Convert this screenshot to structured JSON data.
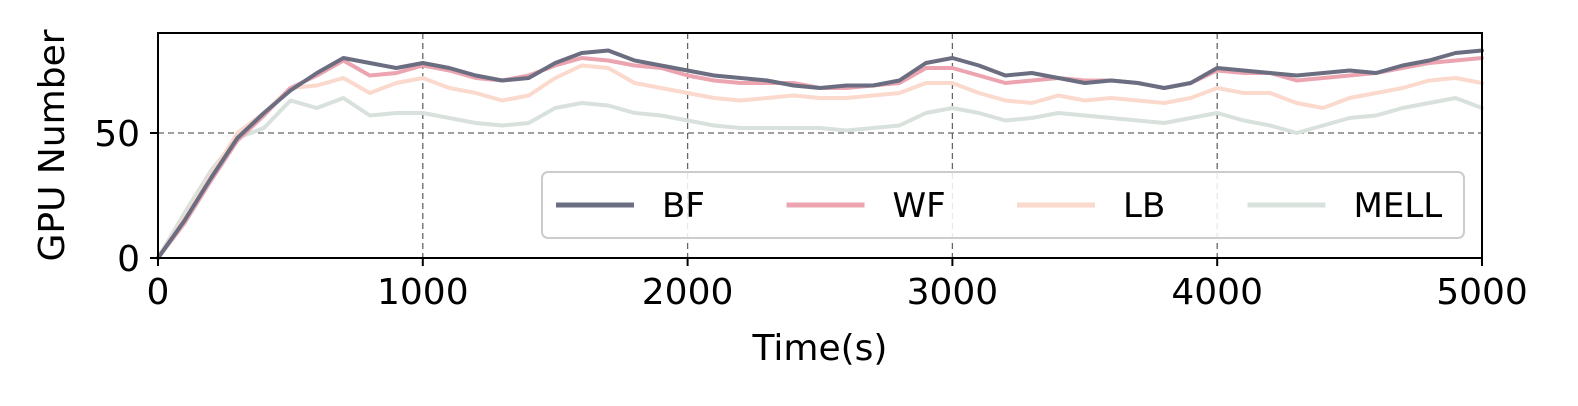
{
  "chart_data": {
    "type": "line",
    "xlabel": "Time(s)",
    "ylabel": "GPU Number",
    "xlim": [
      0,
      5000
    ],
    "ylim": [
      0,
      90
    ],
    "xticks": [
      0,
      1000,
      2000,
      3000,
      4000,
      5000
    ],
    "yticks": [
      0,
      50
    ],
    "grid": "on (dashed)",
    "legend": "lower-right, one row",
    "series": [
      {
        "name": "BF",
        "color": "#6b6d80",
        "x": [
          0,
          100,
          200,
          300,
          400,
          500,
          600,
          700,
          800,
          900,
          1000,
          1100,
          1200,
          1300,
          1400,
          1500,
          1600,
          1700,
          1800,
          1900,
          2000,
          2100,
          2200,
          2300,
          2400,
          2500,
          2600,
          2700,
          2800,
          2900,
          3000,
          3100,
          3200,
          3300,
          3400,
          3500,
          3600,
          3700,
          3800,
          3900,
          4000,
          4100,
          4200,
          4300,
          4400,
          4500,
          4600,
          4700,
          4800,
          4900,
          5000
        ],
        "y": [
          0,
          15,
          32,
          48,
          58,
          67,
          74,
          80,
          78,
          76,
          78,
          76,
          73,
          71,
          72,
          78,
          82,
          83,
          79,
          77,
          75,
          73,
          72,
          71,
          69,
          68,
          69,
          69,
          71,
          78,
          80,
          77,
          73,
          74,
          72,
          70,
          71,
          70,
          68,
          70,
          76,
          75,
          74,
          73,
          74,
          75,
          74,
          77,
          79,
          82,
          83
        ]
      },
      {
        "name": "WF",
        "color": "#eba4b0",
        "x": [
          0,
          100,
          200,
          300,
          400,
          500,
          600,
          700,
          800,
          900,
          1000,
          1100,
          1200,
          1300,
          1400,
          1500,
          1600,
          1700,
          1800,
          1900,
          2000,
          2100,
          2200,
          2300,
          2400,
          2500,
          2600,
          2700,
          2800,
          2900,
          3000,
          3100,
          3200,
          3300,
          3400,
          3500,
          3600,
          3700,
          3800,
          3900,
          4000,
          4100,
          4200,
          4300,
          4400,
          4500,
          4600,
          4700,
          4800,
          4900,
          5000
        ],
        "y": [
          0,
          14,
          31,
          47,
          57,
          68,
          73,
          79,
          73,
          74,
          77,
          75,
          72,
          71,
          73,
          77,
          80,
          79,
          77,
          76,
          73,
          71,
          70,
          70,
          70,
          68,
          68,
          69,
          70,
          76,
          76,
          73,
          70,
          71,
          72,
          71,
          71,
          70,
          68,
          70,
          75,
          74,
          74,
          71,
          72,
          73,
          74,
          76,
          78,
          79,
          80
        ]
      },
      {
        "name": "LB",
        "color": "#fbd9cd",
        "x": [
          0,
          100,
          200,
          300,
          400,
          500,
          600,
          700,
          800,
          900,
          1000,
          1100,
          1200,
          1300,
          1400,
          1500,
          1600,
          1700,
          1800,
          1900,
          2000,
          2100,
          2200,
          2300,
          2400,
          2500,
          2600,
          2700,
          2800,
          2900,
          3000,
          3100,
          3200,
          3300,
          3400,
          3500,
          3600,
          3700,
          3800,
          3900,
          4000,
          4100,
          4200,
          4300,
          4400,
          4500,
          4600,
          4700,
          4800,
          4900,
          5000
        ],
        "y": [
          0,
          16,
          33,
          50,
          58,
          68,
          69,
          72,
          66,
          70,
          72,
          68,
          66,
          63,
          65,
          72,
          77,
          76,
          70,
          68,
          66,
          64,
          63,
          64,
          65,
          64,
          64,
          65,
          66,
          70,
          70,
          66,
          63,
          62,
          65,
          63,
          64,
          63,
          62,
          64,
          68,
          66,
          66,
          62,
          60,
          64,
          66,
          68,
          71,
          72,
          70
        ]
      },
      {
        "name": "MELL",
        "color": "#d9e1dc",
        "x": [
          0,
          100,
          200,
          300,
          400,
          500,
          600,
          700,
          800,
          900,
          1000,
          1100,
          1200,
          1300,
          1400,
          1500,
          1600,
          1700,
          1800,
          1900,
          2000,
          2100,
          2200,
          2300,
          2400,
          2500,
          2600,
          2700,
          2800,
          2900,
          3000,
          3100,
          3200,
          3300,
          3400,
          3500,
          3600,
          3700,
          3800,
          3900,
          4000,
          4100,
          4200,
          4300,
          4400,
          4500,
          4600,
          4700,
          4800,
          4900,
          5000
        ],
        "y": [
          0,
          18,
          35,
          48,
          52,
          63,
          60,
          64,
          57,
          58,
          58,
          56,
          54,
          53,
          54,
          60,
          62,
          61,
          58,
          57,
          55,
          53,
          52,
          52,
          52,
          52,
          51,
          52,
          53,
          58,
          60,
          58,
          55,
          56,
          58,
          57,
          56,
          55,
          54,
          56,
          58,
          55,
          53,
          50,
          53,
          56,
          57,
          60,
          62,
          64,
          60
        ]
      }
    ]
  }
}
